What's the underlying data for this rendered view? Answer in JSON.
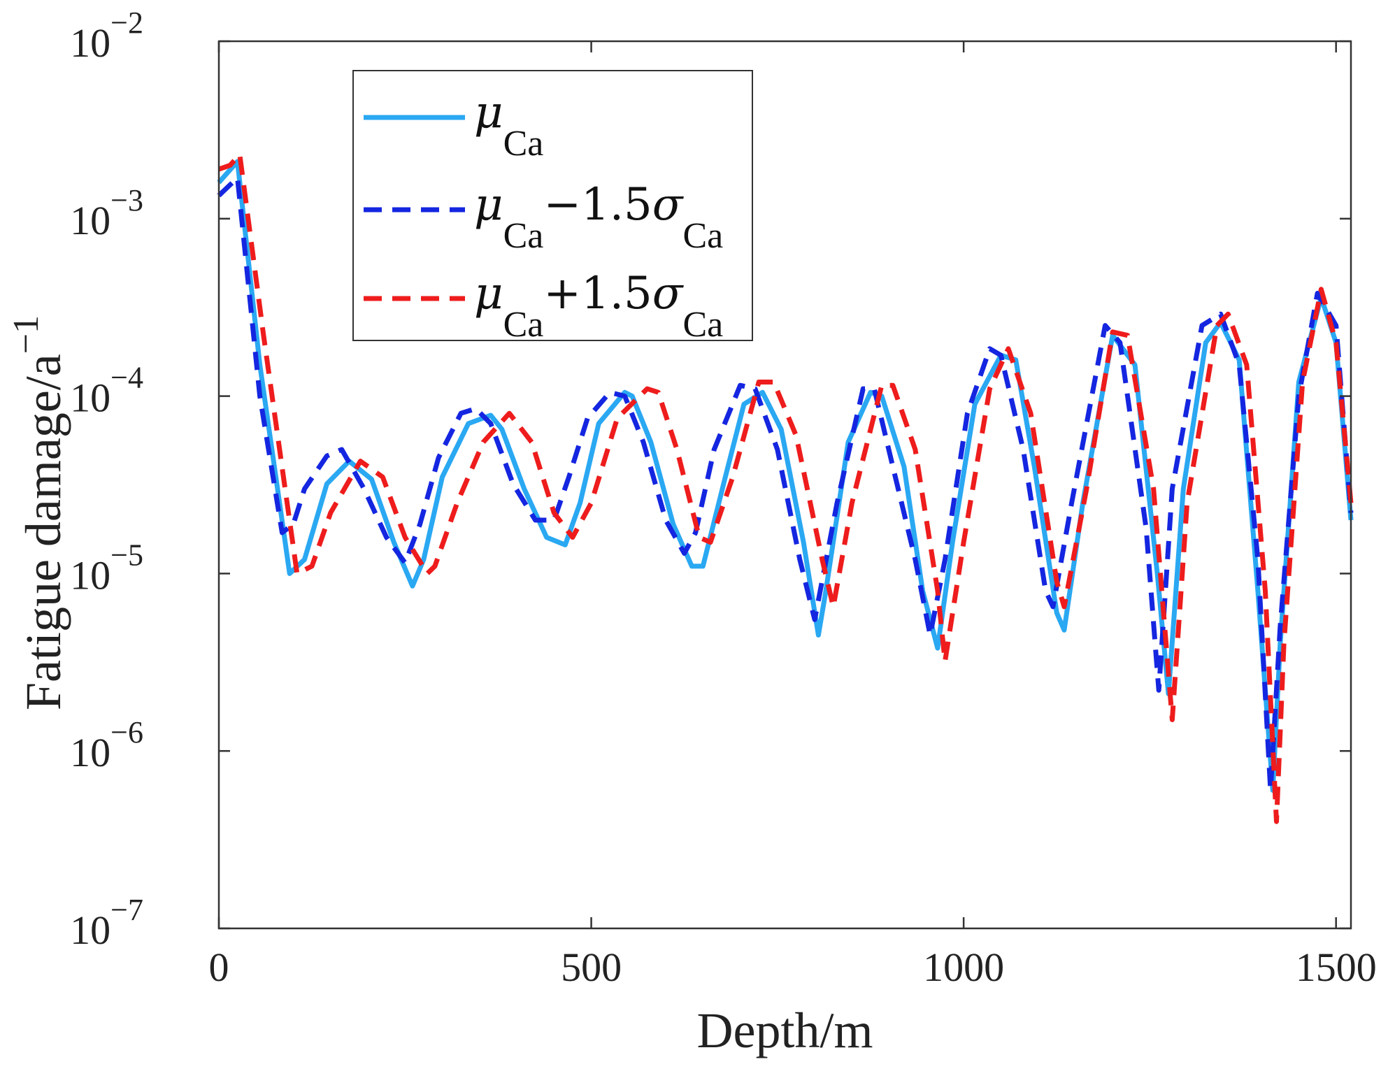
{
  "chart_data": {
    "type": "line",
    "title": "",
    "xlabel": "Depth/m",
    "ylabel": "Fatigue damage/a",
    "ylabel_sup": "−1",
    "xlim": [
      0,
      1520
    ],
    "ylim": [
      1e-07,
      0.01
    ],
    "yscale": "log",
    "xticks": [
      0,
      500,
      1000,
      1500
    ],
    "xtick_labels": [
      "0",
      "500",
      "1000",
      "1500"
    ],
    "yticks": [
      {
        "value": 1e-07,
        "base": "10",
        "exp": "−7"
      },
      {
        "value": 1e-06,
        "base": "10",
        "exp": "−6"
      },
      {
        "value": 1e-05,
        "base": "10",
        "exp": "−5"
      },
      {
        "value": 0.0001,
        "base": "10",
        "exp": "−4"
      },
      {
        "value": 0.001,
        "base": "10",
        "exp": "−3"
      },
      {
        "value": 0.01,
        "base": "10",
        "exp": "−2"
      }
    ],
    "grid": false,
    "legend_position": "top-left",
    "series": [
      {
        "name": "μCa",
        "legend": {
          "main": "μ",
          "sub": "Ca",
          "op": "",
          "coef": "",
          "sub2": ""
        },
        "color": "#2aa8f2",
        "dash": "solid",
        "x": [
          0,
          25,
          55,
          95,
          115,
          145,
          175,
          205,
          235,
          260,
          275,
          300,
          335,
          365,
          380,
          410,
          440,
          465,
          485,
          510,
          545,
          555,
          580,
          610,
          635,
          650,
          680,
          705,
          730,
          755,
          785,
          805,
          815,
          845,
          875,
          890,
          920,
          945,
          965,
          985,
          1015,
          1050,
          1070,
          1095,
          1125,
          1135,
          1160,
          1200,
          1230,
          1260,
          1275,
          1295,
          1325,
          1345,
          1370,
          1395,
          1415,
          1425,
          1450,
          1480,
          1500,
          1520
        ],
        "y": [
          0.0016,
          0.0021,
          0.00015,
          1e-05,
          1.2e-05,
          3.2e-05,
          4.3e-05,
          3.4e-05,
          1.5e-05,
          8.5e-06,
          1.2e-05,
          3.5e-05,
          7e-05,
          7.8e-05,
          6.5e-05,
          3e-05,
          1.6e-05,
          1.45e-05,
          2.5e-05,
          7e-05,
          0.000105,
          0.0001,
          5.5e-05,
          1.9e-05,
          1.1e-05,
          1.1e-05,
          3.5e-05,
          9e-05,
          0.000105,
          6.5e-05,
          1.5e-05,
          4.5e-06,
          8e-06,
          5.5e-05,
          0.000105,
          0.0001,
          4e-05,
          8e-06,
          3.8e-06,
          1.5e-05,
          9e-05,
          0.00017,
          0.00016,
          4e-05,
          6e-06,
          4.8e-06,
          2.5e-05,
          0.00022,
          0.00015,
          1e-05,
          2.1e-06,
          3e-05,
          0.0002,
          0.00026,
          0.00016,
          8e-06,
          6e-07,
          4e-06,
          0.00012,
          0.00036,
          0.0002,
          2e-05
        ]
      },
      {
        "name": "μCa−1.5σCa",
        "legend": {
          "main": "μ",
          "sub": "Ca",
          "op": "−1.5",
          "coef": "σ",
          "sub2": "Ca"
        },
        "color": "#1426e0",
        "dash": "dashed",
        "x": [
          0,
          25,
          55,
          85,
          100,
          115,
          145,
          165,
          195,
          225,
          250,
          270,
          295,
          325,
          345,
          365,
          395,
          425,
          450,
          470,
          495,
          525,
          545,
          570,
          600,
          625,
          640,
          665,
          700,
          720,
          750,
          780,
          800,
          830,
          865,
          880,
          905,
          935,
          955,
          975,
          1005,
          1035,
          1050,
          1080,
          1110,
          1120,
          1145,
          1190,
          1210,
          1245,
          1262,
          1280,
          1320,
          1345,
          1370,
          1395,
          1412,
          1425,
          1450,
          1475,
          1500,
          1520
        ],
        "y": [
          0.00135,
          0.0017,
          0.0001,
          1.7e-05,
          1.9e-05,
          3e-05,
          4.6e-05,
          5e-05,
          3e-05,
          1.6e-05,
          1.15e-05,
          1.9e-05,
          4.5e-05,
          8e-05,
          8.5e-05,
          7e-05,
          3.2e-05,
          2e-05,
          2e-05,
          3.5e-05,
          7.5e-05,
          0.000105,
          0.0001,
          5.5e-05,
          2e-05,
          1.3e-05,
          1.7e-05,
          5e-05,
          0.000115,
          0.00011,
          5e-05,
          1.2e-05,
          5.5e-06,
          2.5e-05,
          0.00011,
          0.00011,
          4e-05,
          1.2e-05,
          4.5e-06,
          1.2e-05,
          8e-05,
          0.000185,
          0.00017,
          5e-05,
          8e-06,
          6.5e-06,
          2.5e-05,
          0.00025,
          0.0002,
          1.8e-05,
          2.2e-06,
          3e-05,
          0.00025,
          0.00029,
          0.00015,
          1.2e-05,
          6e-07,
          5e-06,
          0.0001,
          0.00038,
          0.00025,
          2.2e-05
        ]
      },
      {
        "name": "μCa+1.5σCa",
        "legend": {
          "main": "μ",
          "sub": "Ca",
          "op": "+1.5",
          "coef": "σ",
          "sub2": "Ca"
        },
        "color": "#ee1c1c",
        "dash": "dashed",
        "x": [
          0,
          15,
          28,
          60,
          105,
          125,
          150,
          190,
          220,
          250,
          280,
          290,
          320,
          355,
          390,
          420,
          450,
          475,
          500,
          535,
          575,
          590,
          615,
          645,
          660,
          690,
          725,
          745,
          775,
          810,
          825,
          850,
          890,
          905,
          935,
          965,
          975,
          1000,
          1035,
          1060,
          1090,
          1125,
          1135,
          1165,
          1200,
          1220,
          1255,
          1280,
          1300,
          1340,
          1355,
          1380,
          1405,
          1420,
          1430,
          1455,
          1480,
          1500,
          1520
        ],
        "y": [
          0.0019,
          0.002,
          0.0023,
          0.00022,
          1e-05,
          1.1e-05,
          2.2e-05,
          4.3e-05,
          3.5e-05,
          1.6e-05,
          1e-05,
          1.1e-05,
          2.5e-05,
          5.5e-05,
          8e-05,
          5.5e-05,
          2.2e-05,
          1.6e-05,
          2.5e-05,
          7.5e-05,
          0.00011,
          0.000105,
          5e-05,
          1.6e-05,
          1.5e-05,
          3.5e-05,
          0.00012,
          0.00012,
          6e-05,
          1.2e-05,
          6.5e-06,
          2.5e-05,
          0.000115,
          0.000115,
          5e-05,
          8e-06,
          3.2e-06,
          1.5e-05,
          0.00011,
          0.000185,
          8e-05,
          9e-06,
          6.5e-06,
          3e-05,
          0.00023,
          0.00022,
          3e-05,
          1.5e-06,
          2.5e-05,
          0.00025,
          0.00029,
          0.00015,
          8e-06,
          4e-07,
          4e-06,
          0.00012,
          0.0004,
          0.0002,
          2.5e-05
        ]
      }
    ]
  }
}
